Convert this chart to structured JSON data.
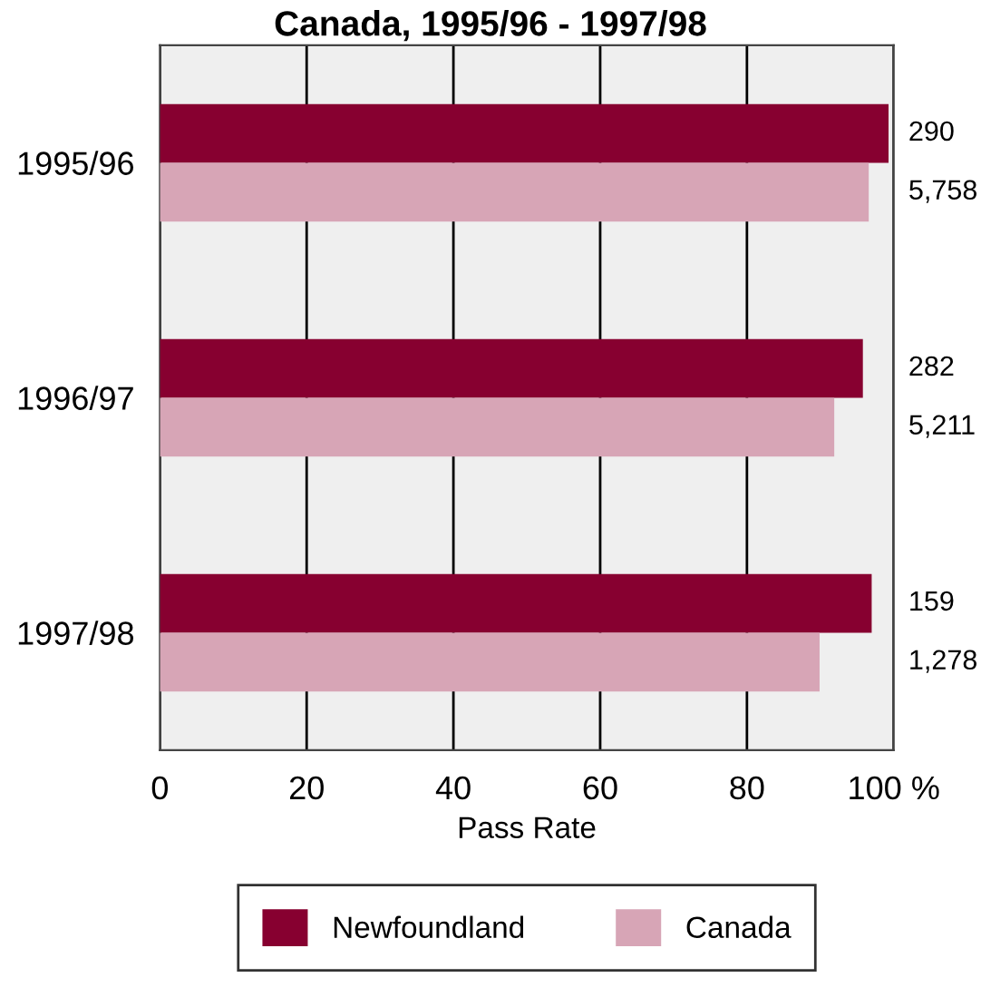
{
  "chart_data": {
    "type": "bar",
    "orientation": "horizontal",
    "title": "Canada, 1995/96 - 1997/98",
    "xlabel": "Pass Rate",
    "categories": [
      "1995/96",
      "1996/97",
      "1997/98"
    ],
    "series": [
      {
        "name": "Newfoundland",
        "color": "#870030",
        "values": [
          99.3,
          95.8,
          97.0
        ]
      },
      {
        "name": "Canada",
        "color": "#d7a5b6",
        "values": [
          96.6,
          91.9,
          89.9
        ]
      }
    ],
    "xlim": [
      0,
      100
    ],
    "xticks": [
      0,
      20,
      40,
      60,
      80,
      {
        "value": 100,
        "label": "100 %"
      }
    ],
    "grid": "x",
    "legend": "bottom",
    "annotations": [
      "290",
      "5,758",
      "282",
      "5,211",
      "159",
      "1,278"
    ]
  }
}
